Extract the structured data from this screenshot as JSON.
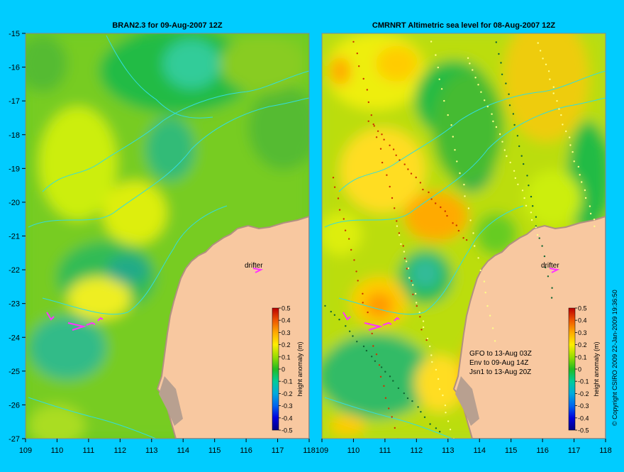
{
  "figure": {
    "background": "#00ccff",
    "land_color": "#f8c8a0",
    "coast_color": "#b8a090",
    "bathy_color": "#33dddd",
    "drifter_color": "#ff33ff"
  },
  "panels": [
    {
      "id": "left",
      "title": "BRAN2.3 for 09-Aug-2007 12Z",
      "x_ticks": [
        "109",
        "110",
        "111",
        "112",
        "113",
        "114",
        "115",
        "116",
        "117",
        "118"
      ],
      "y_ticks": [
        "-15",
        "-16",
        "-17",
        "-18",
        "-19",
        "-20",
        "-21",
        "-22",
        "-23",
        "-24",
        "-25",
        "-26",
        "-27"
      ],
      "drifter_label": "drifter",
      "colorbar": {
        "label": "height anomaly (m)",
        "ticks": [
          "0.5",
          "0.4",
          "0.3",
          "0.2",
          "0.1",
          "0",
          "-0.1",
          "-0.2",
          "-0.3",
          "-0.4",
          "-0.5"
        ]
      }
    },
    {
      "id": "right",
      "title": "CMRNRT Altimetric sea level  for 08-Aug-2007 12Z",
      "x_ticks": [
        "109",
        "110",
        "111",
        "112",
        "113",
        "114",
        "115",
        "116",
        "117",
        "118"
      ],
      "drifter_label": "drifter",
      "colorbar": {
        "label": "height anomaly (m)",
        "ticks": [
          "0.5",
          "0.4",
          "0.3",
          "0.2",
          "0.1",
          "0",
          "-0.1",
          "-0.2",
          "-0.3",
          "-0.4",
          "-0.5"
        ]
      },
      "legend": [
        "GFO to 13-Aug 03Z",
        "Env to 09-Aug 14Z",
        "Jsn1 to 13-Aug 20Z"
      ]
    }
  ],
  "copyright": "© Copyright CSIRO 2009   22-Jan-2009 19:36:50",
  "colorscale": [
    "#000080",
    "#0000cc",
    "#0066ee",
    "#00aadd",
    "#00ccaa",
    "#00bb44",
    "#55cc00",
    "#bbee00",
    "#ffdd00",
    "#ff9900",
    "#ee5500",
    "#cc2200",
    "#990000"
  ]
}
